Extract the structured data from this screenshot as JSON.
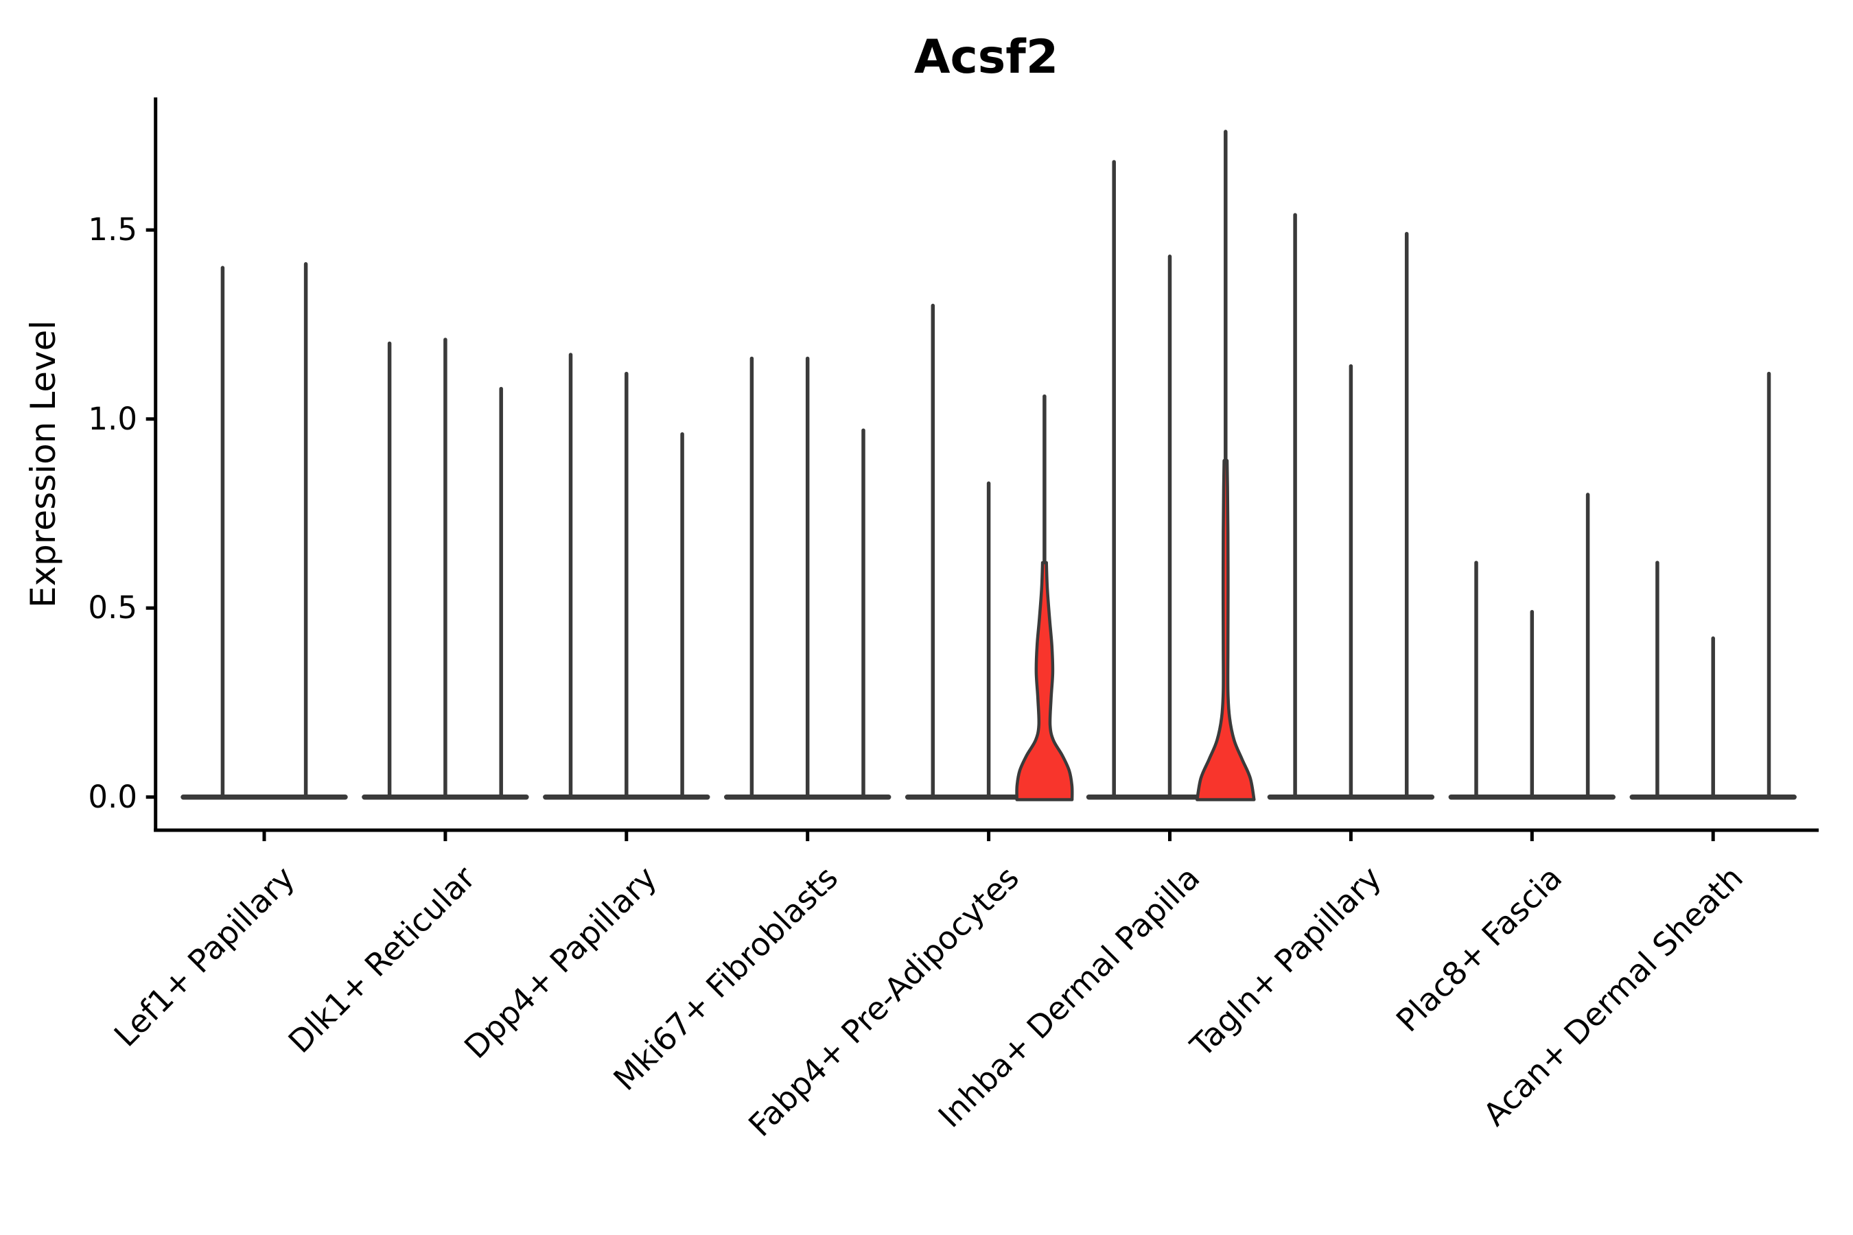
{
  "chart_data": {
    "type": "violin",
    "title": "Acsf2",
    "ylabel": "Expression Level",
    "xlabel": "",
    "grid": false,
    "legend_position": "none",
    "background_color": "#ffffff",
    "violin_line_color": "#3a3a3a",
    "highlight_fill_color": "#f8352c",
    "axis_color": "#000000",
    "ytick_labels": [
      "0.0",
      "0.5",
      "1.0",
      "1.5"
    ],
    "ytick_values": [
      0.0,
      0.5,
      1.0,
      1.5
    ],
    "ylim": [
      -0.09,
      1.85
    ],
    "categories": [
      "Lef1+ Papillary",
      "Dlk1+ Reticular",
      "Dpp4+ Papillary",
      "Mki67+ Fibroblasts",
      "Fabp4+ Pre-Adipocytes",
      "Inhba+ Dermal Papilla",
      "Tagln+ Papillary",
      "Plac8+ Fascia",
      "Acan+ Dermal Sheath"
    ],
    "groups": [
      {
        "category": "Lef1+ Papillary",
        "violins": [
          {
            "max": 1.4
          },
          {
            "max": 1.41
          }
        ]
      },
      {
        "category": "Dlk1+ Reticular",
        "violins": [
          {
            "max": 1.2
          },
          {
            "max": 1.21
          },
          {
            "max": 1.08
          }
        ]
      },
      {
        "category": "Dpp4+ Papillary",
        "violins": [
          {
            "max": 1.17
          },
          {
            "max": 1.12
          },
          {
            "max": 0.96
          }
        ]
      },
      {
        "category": "Mki67+ Fibroblasts",
        "violins": [
          {
            "max": 1.16
          },
          {
            "max": 1.16
          },
          {
            "max": 0.97
          }
        ]
      },
      {
        "category": "Fabp4+ Pre-Adipocytes",
        "violins": [
          {
            "max": 1.3
          },
          {
            "max": 0.83
          },
          {
            "max": 1.06,
            "highlighted": true,
            "body": [
              [
                0,
                40.2
              ],
              [
                0.03,
                40
              ],
              [
                0.07,
                36
              ],
              [
                0.11,
                26
              ],
              [
                0.15,
                13
              ],
              [
                0.19,
                8.2
              ],
              [
                0.26,
                9.6
              ],
              [
                0.33,
                12
              ],
              [
                0.4,
                10.8
              ],
              [
                0.47,
                7.5
              ],
              [
                0.55,
                4.2
              ],
              [
                0.62,
                2.8
              ]
            ]
          }
        ]
      },
      {
        "category": "Inhba+ Dermal Papilla",
        "violins": [
          {
            "max": 1.68
          },
          {
            "max": 1.43
          },
          {
            "max": 1.76,
            "highlighted": true,
            "body": [
              [
                0,
                41.5
              ],
              [
                0.05,
                36
              ],
              [
                0.1,
                24
              ],
              [
                0.15,
                12.5
              ],
              [
                0.21,
                5.8
              ],
              [
                0.28,
                3.4
              ],
              [
                0.4,
                3.4
              ],
              [
                0.55,
                3.6
              ],
              [
                0.7,
                3.4
              ],
              [
                0.82,
                2.8
              ],
              [
                0.89,
                2.2
              ]
            ]
          }
        ]
      },
      {
        "category": "Tagln+ Papillary",
        "violins": [
          {
            "max": 1.54
          },
          {
            "max": 1.14
          },
          {
            "max": 1.49
          }
        ]
      },
      {
        "category": "Plac8+ Fascia",
        "violins": [
          {
            "max": 0.62
          },
          {
            "max": 0.49
          },
          {
            "max": 0.8
          }
        ]
      },
      {
        "category": "Acan+ Dermal Sheath",
        "violins": [
          {
            "max": 0.62
          },
          {
            "max": 0.42
          },
          {
            "max": 1.12
          }
        ]
      }
    ]
  }
}
